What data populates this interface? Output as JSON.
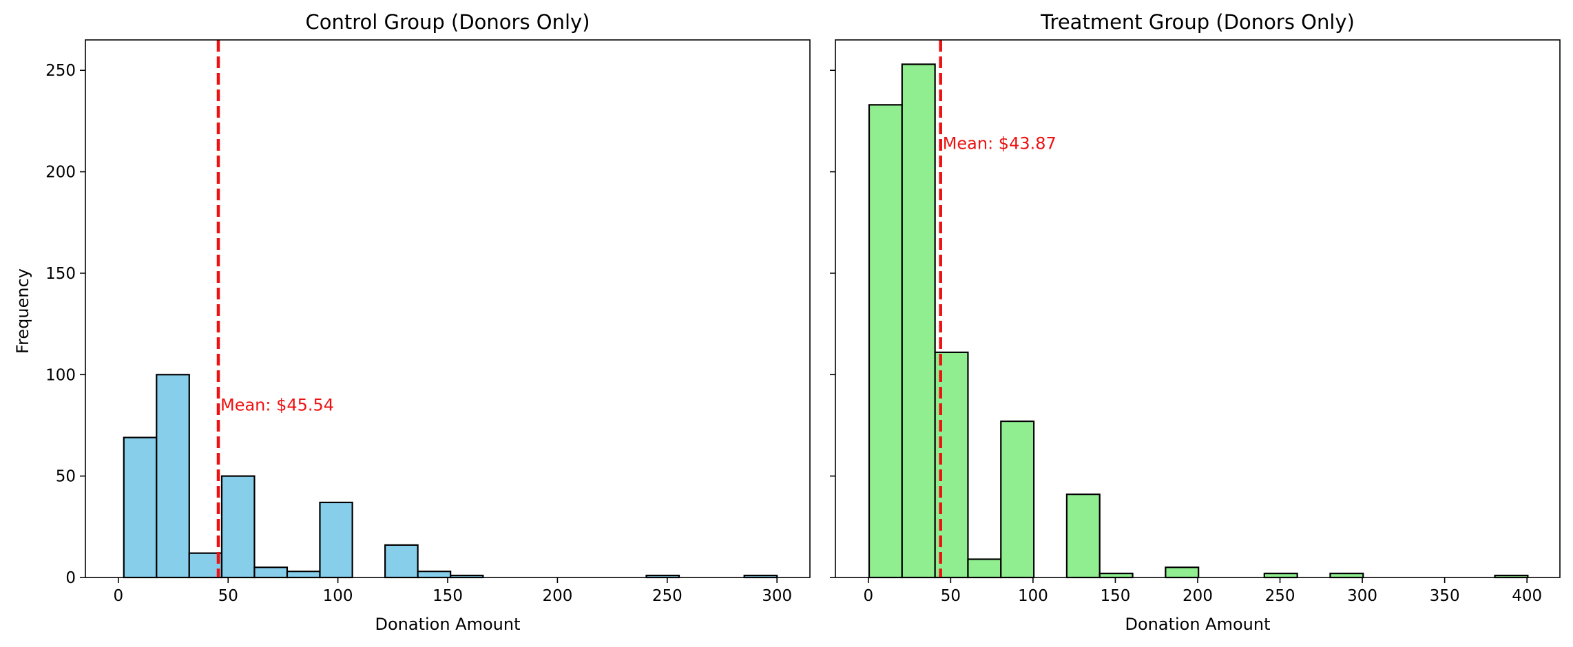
{
  "chart_data": [
    {
      "type": "bar",
      "title": "Control Group (Donors Only)",
      "xlabel": "Donation Amount",
      "ylabel": "Frequency",
      "xlim": [
        -15,
        315
      ],
      "ylim": [
        0,
        265
      ],
      "xticks": [
        0,
        50,
        100,
        150,
        200,
        250,
        300
      ],
      "yticks": [
        0,
        50,
        100,
        150,
        200,
        250
      ],
      "bar_color": "#87ceeb",
      "edge_color": "#000000",
      "bins": [
        {
          "x0": 2.5,
          "x1": 17.4,
          "count": 69
        },
        {
          "x0": 17.4,
          "x1": 32.3,
          "count": 100
        },
        {
          "x0": 32.3,
          "x1": 47.1,
          "count": 12
        },
        {
          "x0": 47.1,
          "x1": 62.0,
          "count": 50
        },
        {
          "x0": 62.0,
          "x1": 76.9,
          "count": 5
        },
        {
          "x0": 76.9,
          "x1": 91.8,
          "count": 3
        },
        {
          "x0": 91.8,
          "x1": 106.6,
          "count": 37
        },
        {
          "x0": 106.6,
          "x1": 121.5,
          "count": 0
        },
        {
          "x0": 121.5,
          "x1": 136.4,
          "count": 16
        },
        {
          "x0": 136.4,
          "x1": 151.3,
          "count": 3
        },
        {
          "x0": 151.3,
          "x1": 166.1,
          "count": 1
        },
        {
          "x0": 166.1,
          "x1": 181.0,
          "count": 0
        },
        {
          "x0": 181.0,
          "x1": 195.9,
          "count": 0
        },
        {
          "x0": 195.9,
          "x1": 210.8,
          "count": 0
        },
        {
          "x0": 210.8,
          "x1": 225.6,
          "count": 0
        },
        {
          "x0": 225.6,
          "x1": 240.5,
          "count": 0
        },
        {
          "x0": 240.5,
          "x1": 255.4,
          "count": 1
        },
        {
          "x0": 255.4,
          "x1": 270.3,
          "count": 0
        },
        {
          "x0": 270.3,
          "x1": 285.1,
          "count": 0
        },
        {
          "x0": 285.1,
          "x1": 300.0,
          "count": 1
        }
      ],
      "mean": 45.54,
      "mean_label": "Mean: $45.54",
      "mean_color": "#ee1111",
      "mean_label_y": 85
    },
    {
      "type": "bar",
      "title": "Treatment Group (Donors Only)",
      "xlabel": "Donation Amount",
      "ylabel": "",
      "xlim": [
        -20,
        420
      ],
      "ylim": [
        0,
        265
      ],
      "xticks": [
        0,
        50,
        100,
        150,
        200,
        250,
        300,
        350,
        400
      ],
      "yticks": [
        0,
        50,
        100,
        150,
        200,
        250
      ],
      "bar_color": "#90ee90",
      "edge_color": "#000000",
      "bins": [
        {
          "x0": 0.5,
          "x1": 20.5,
          "count": 233
        },
        {
          "x0": 20.5,
          "x1": 40.5,
          "count": 253
        },
        {
          "x0": 40.5,
          "x1": 60.5,
          "count": 111
        },
        {
          "x0": 60.5,
          "x1": 80.5,
          "count": 9
        },
        {
          "x0": 80.5,
          "x1": 100.5,
          "count": 77
        },
        {
          "x0": 100.5,
          "x1": 120.5,
          "count": 0
        },
        {
          "x0": 120.5,
          "x1": 140.5,
          "count": 41
        },
        {
          "x0": 140.5,
          "x1": 160.5,
          "count": 2
        },
        {
          "x0": 160.5,
          "x1": 180.5,
          "count": 0
        },
        {
          "x0": 180.5,
          "x1": 200.5,
          "count": 5
        },
        {
          "x0": 200.5,
          "x1": 220.5,
          "count": 0
        },
        {
          "x0": 220.5,
          "x1": 240.5,
          "count": 0
        },
        {
          "x0": 240.5,
          "x1": 260.5,
          "count": 2
        },
        {
          "x0": 260.5,
          "x1": 280.5,
          "count": 0
        },
        {
          "x0": 280.5,
          "x1": 300.5,
          "count": 2
        },
        {
          "x0": 300.5,
          "x1": 320.5,
          "count": 0
        },
        {
          "x0": 320.5,
          "x1": 340.5,
          "count": 0
        },
        {
          "x0": 340.5,
          "x1": 360.5,
          "count": 0
        },
        {
          "x0": 360.5,
          "x1": 380.5,
          "count": 0
        },
        {
          "x0": 380.5,
          "x1": 400.5,
          "count": 1
        }
      ],
      "mean": 43.87,
      "mean_label": "Mean: $43.87",
      "mean_color": "#ee1111",
      "mean_label_y": 214,
      "shared_y": true
    }
  ]
}
